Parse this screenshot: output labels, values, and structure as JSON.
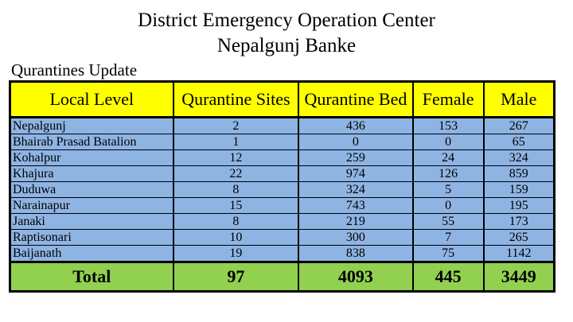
{
  "header": {
    "title_line1": "District Emergency Operation Center",
    "title_line2": "Nepalgunj Banke"
  },
  "section_label": "Qurantines Update",
  "table": {
    "columns": [
      "Local Level",
      "Qurantine Sites",
      "Qurantine Bed",
      "Female",
      "Male"
    ],
    "rows": [
      [
        "Nepalgunj",
        "2",
        "436",
        "153",
        "267"
      ],
      [
        "Bhairab Prasad Batalion",
        "1",
        "0",
        "0",
        "65"
      ],
      [
        "Kohalpur",
        "12",
        "259",
        "24",
        "324"
      ],
      [
        "Khajura",
        "22",
        "974",
        "126",
        "859"
      ],
      [
        "Duduwa",
        "8",
        "324",
        "5",
        "159"
      ],
      [
        "Narainapur",
        "15",
        "743",
        "0",
        "195"
      ],
      [
        "Janaki",
        "8",
        "219",
        "55",
        "173"
      ],
      [
        "Raptisonari",
        "10",
        "300",
        "7",
        "265"
      ],
      [
        "Baijanath",
        "19",
        "838",
        "75",
        "1142"
      ]
    ],
    "total": [
      "Total",
      "97",
      "4093",
      "445",
      "3449"
    ]
  },
  "colors": {
    "header_bg": "#ffff00",
    "row_bg": "#8eb4e3",
    "total_bg": "#92d050"
  }
}
